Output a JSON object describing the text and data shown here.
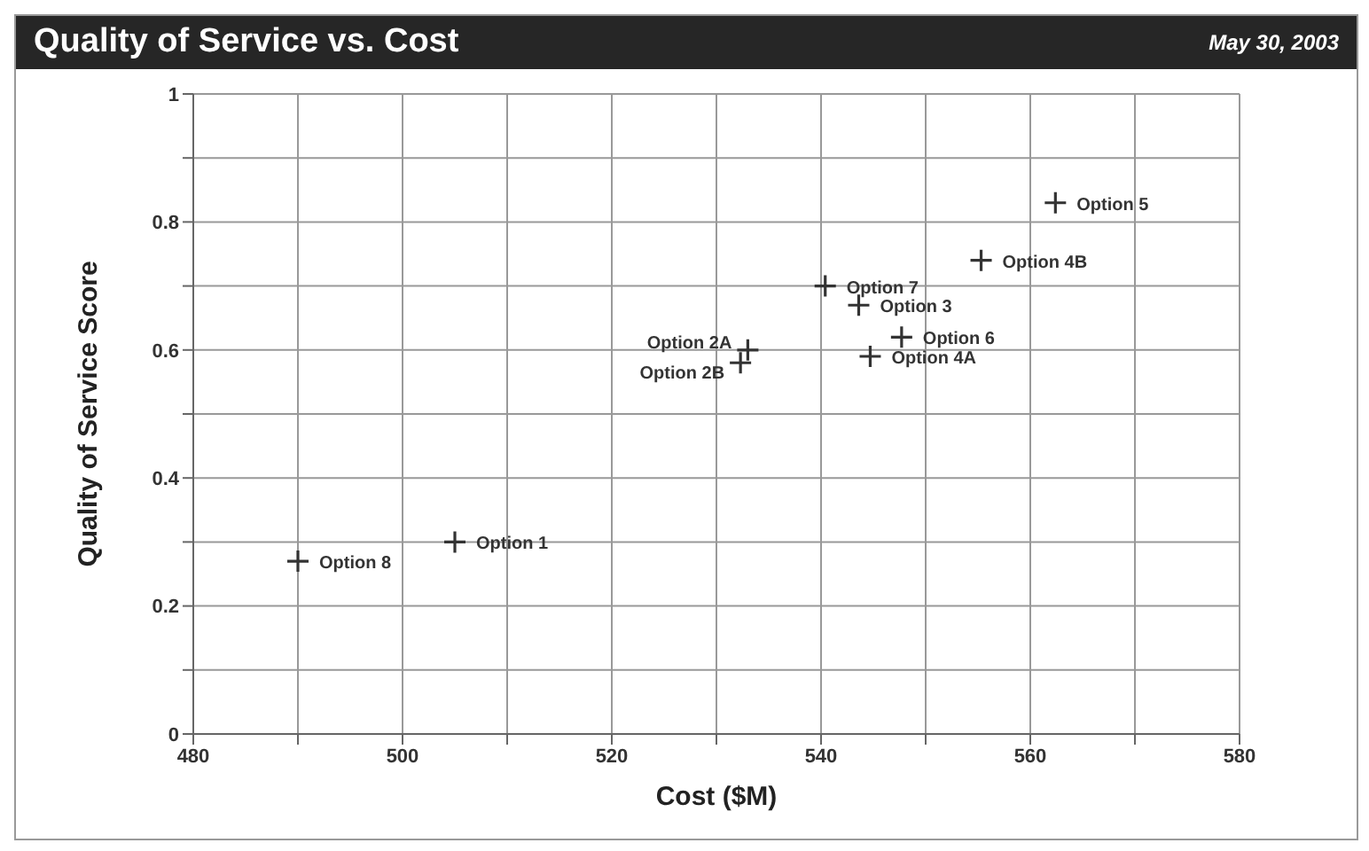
{
  "chart_data": {
    "type": "scatter",
    "title": "Quality of Service vs. Cost",
    "subtitle": "May 30, 2003",
    "xlabel": "Cost ($M)",
    "ylabel": "Quality of Service Score",
    "xlim": [
      480,
      580
    ],
    "xticks": [
      480,
      {
        "value": 490,
        "label": null
      },
      500,
      {
        "value": 510,
        "label": null
      },
      520,
      {
        "value": 530,
        "label": null
      },
      540,
      {
        "value": 550,
        "label": null
      },
      560,
      {
        "value": 570,
        "label": null
      },
      580
    ],
    "ylim": [
      0,
      1
    ],
    "yticks": [
      0,
      {
        "value": 0.1,
        "label": null
      },
      0.2,
      {
        "value": 0.3,
        "label": null
      },
      0.4,
      {
        "value": 0.5,
        "label": null
      },
      0.6,
      {
        "value": 0.7,
        "label": null
      },
      0.8,
      {
        "value": 0.9,
        "label": null
      },
      1
    ],
    "grid": true,
    "legend": false,
    "marker": "cross",
    "series": [
      {
        "name": "Option 8",
        "color": "#333333",
        "x": [
          490
        ],
        "values": [
          0.27
        ]
      },
      {
        "name": "Option 1",
        "color": "#333333",
        "x": [
          505
        ],
        "values": [
          0.3
        ]
      },
      {
        "name": "Option 2A",
        "color": "#333333",
        "x": [
          533
        ],
        "values": [
          0.6
        ]
      },
      {
        "name": "Option 2B",
        "color": "#333333",
        "x": [
          532.3
        ],
        "values": [
          0.58
        ]
      },
      {
        "name": "Option 7",
        "color": "#333333",
        "x": [
          540.4
        ],
        "values": [
          0.7
        ]
      },
      {
        "name": "Option 3",
        "color": "#333333",
        "x": [
          543.6
        ],
        "values": [
          0.67
        ]
      },
      {
        "name": "Option 6",
        "color": "#333333",
        "x": [
          547.7
        ],
        "values": [
          0.62
        ]
      },
      {
        "name": "Option 4A",
        "color": "#333333",
        "x": [
          544.7
        ],
        "values": [
          0.59
        ]
      },
      {
        "name": "Option 4B",
        "color": "#333333",
        "x": [
          555.3
        ],
        "values": [
          0.74
        ]
      },
      {
        "name": "Option 5",
        "color": "#333333",
        "x": [
          562.4
        ],
        "values": [
          0.83
        ]
      }
    ]
  }
}
